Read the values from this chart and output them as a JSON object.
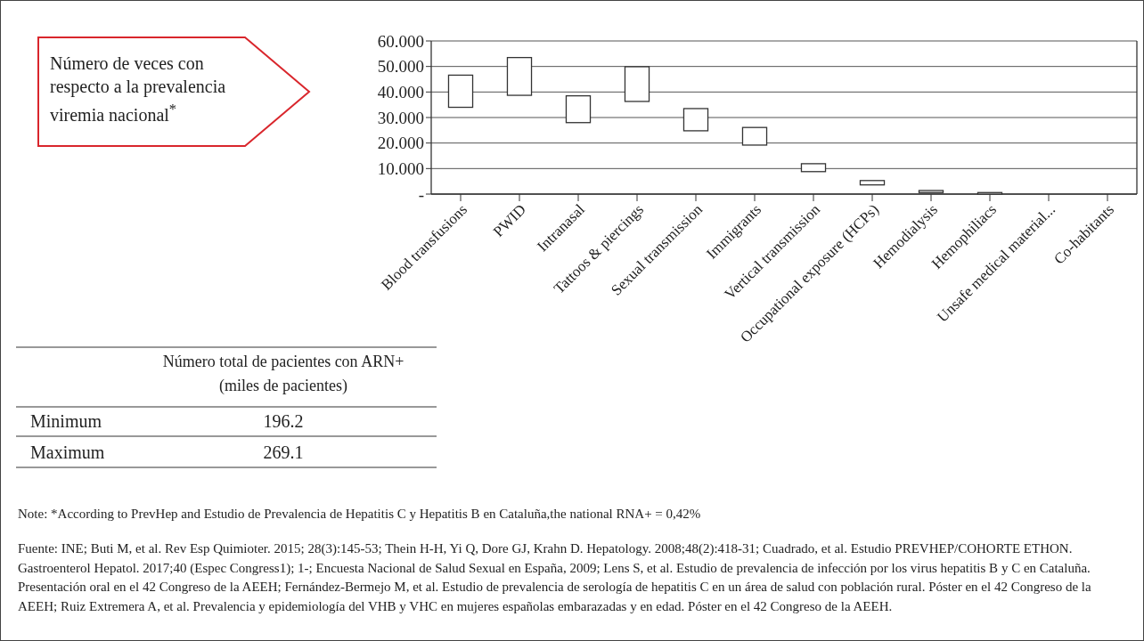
{
  "chart_data": {
    "type": "bar",
    "title": "Número de veces con respecto a la prevalencia viremia nacional$^{*}$",
    "categories": [
      "Blood transfusions",
      "PWID",
      "Intranasal",
      "Tattoos & piercings",
      "Sexual transmission",
      "Immigrants",
      "Vertical transmission",
      "Occupational exposure (HCPs)",
      "Hemodialysis",
      "Hemophiliacs",
      "Unsafe medical material...",
      "Co-habitants"
    ],
    "base": [
      34,
      38.7,
      28,
      36.3,
      24.8,
      19.2,
      8.8,
      3.6,
      0.6,
      0,
      null,
      null
    ],
    "values": [
      12.6,
      14.8,
      10.5,
      13.6,
      8.7,
      6.9,
      3.1,
      1.7,
      0.8,
      0.6,
      null,
      null
    ],
    "color": "#ffffff",
    "ylim": [
      0,
      60
    ],
    "yticks": [
      {
        "value": 0,
        "label": "-"
      },
      {
        "value": 10,
        "label": "10.000"
      },
      {
        "value": 20,
        "label": "20.000"
      },
      {
        "value": 30,
        "label": "30.000"
      },
      {
        "value": 40,
        "label": "40.000"
      },
      {
        "value": 50,
        "label": "50.000"
      },
      {
        "value": 60,
        "label": "60.000"
      }
    ],
    "grid": "y",
    "annotations": [
      "Número total de pacientes con ARN+ (miles de pacientes)",
      "Minimum",
      "196.2",
      "Maximum",
      "269.1",
      "Note: *According to PrevHep and Estudio de Prevalencia de Hepatitis C y Hepatitis B en Cataluña,the national RNA+ = 0,42%",
      "Fuente: INE; Buti M, et al. Rev Esp Quimioter. 2015; 28(3):145-53; Thein H-H, Yi Q, Dore GJ, Krahn D. Hepatology. 2008;48(2):418-31; Cuadrado, et al. Estudio PREVHEP/COHORTE ETHON. Gastroenterol Hepatol. 2017;40 (Espec Congress1); 1-; Encuesta Nacional de Salud Sexual en España, 2009; Lens S, et al. Estudio de prevalencia de infección por los virus hepatitis B y C en Cataluña. Presentación oral en el 42 Congreso de la AEEH; Fernández-Bermejo M, et al. Estudio de prevalencia de serología de hepatitis C en un área de salud con población rural. Póster en el 42 Congreso de la AEEH; Ruiz Extremera A, et al. Prevalencia y epidemiología del VHB y VHC en mujeres españolas embarazadas y en edad. Póster en el 42 Congreso de la AEEH."
    ]
  }
}
